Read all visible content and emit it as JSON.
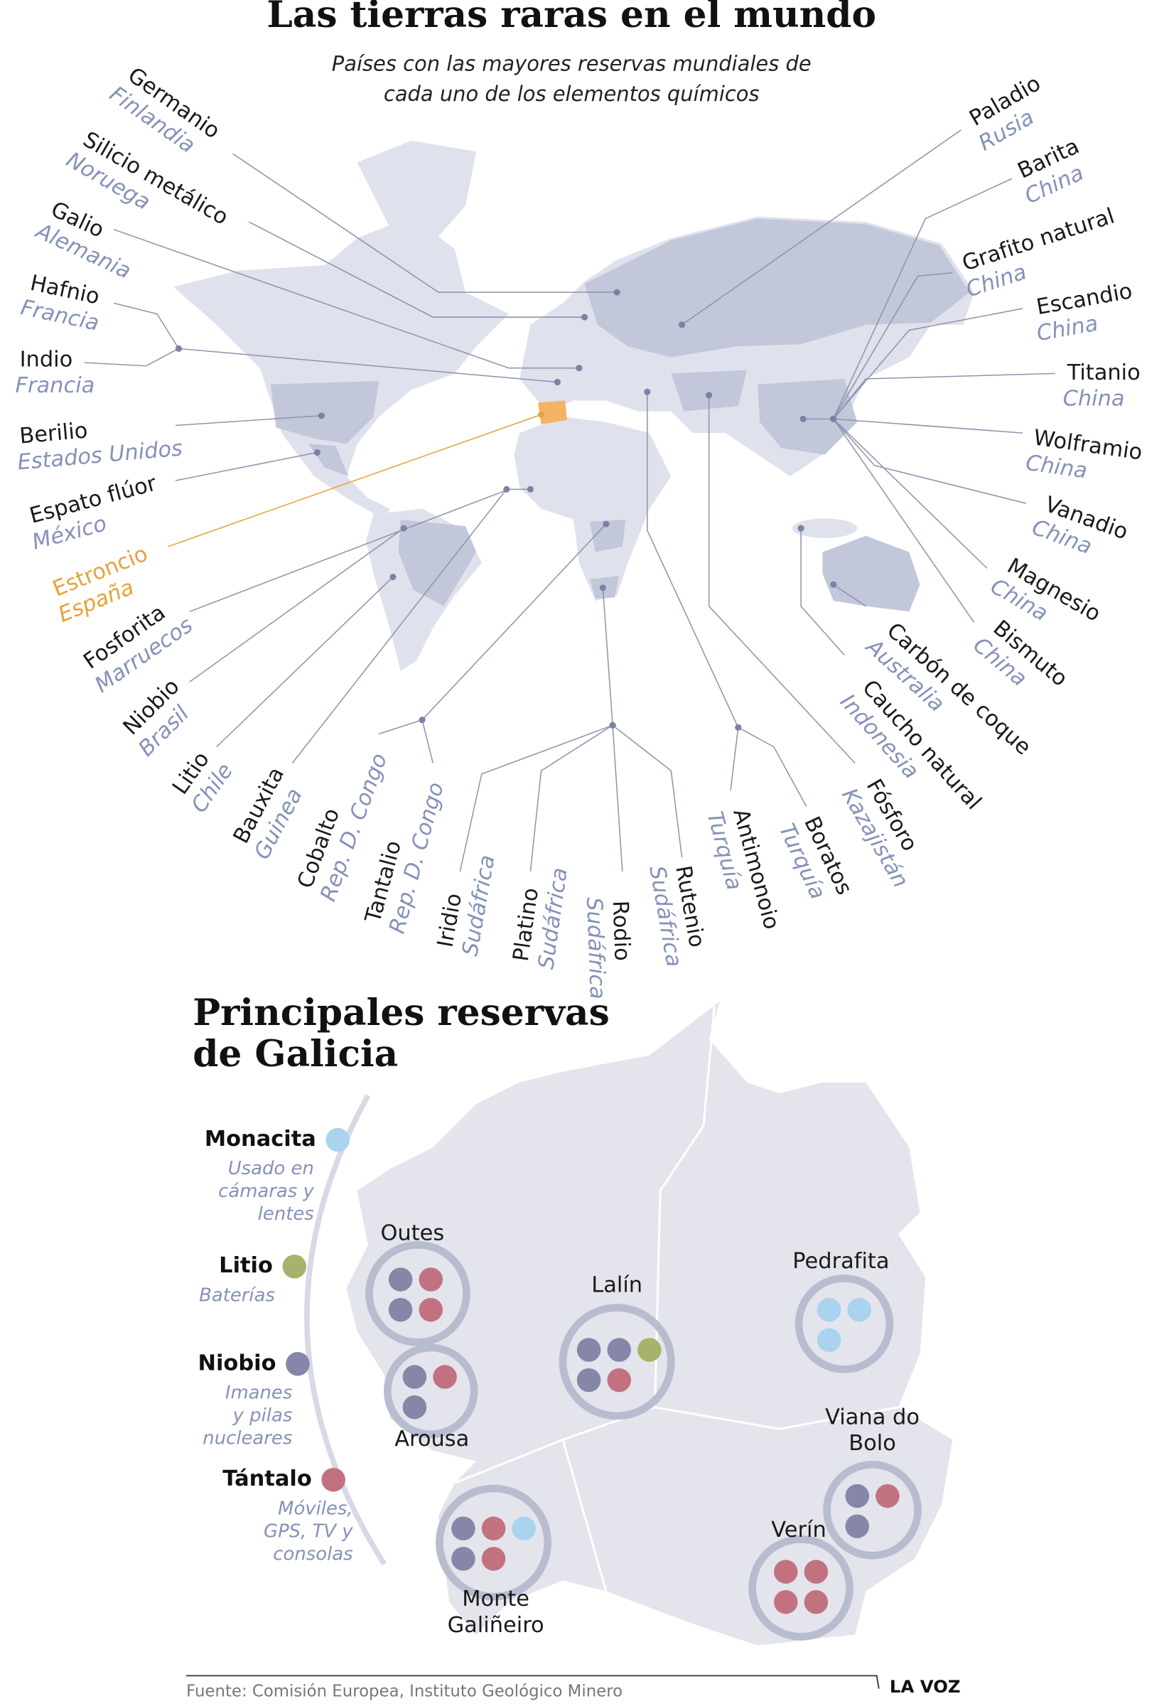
{
  "header": {
    "title": "Las tierras raras en el mundo",
    "subtitle": [
      "Países con las mayores reservas mundiales de",
      "cada uno de los elementos químicos"
    ]
  },
  "world": {
    "elements": [
      {
        "name": "Germanio",
        "country": "Finlandia"
      },
      {
        "name": "Silicio metálico",
        "country": "Noruega"
      },
      {
        "name": "Galio",
        "country": "Alemania"
      },
      {
        "name": "Hafnio",
        "country": "Francia"
      },
      {
        "name": "Indio",
        "country": "Francia"
      },
      {
        "name": "Berilio",
        "country": "Estados Unidos"
      },
      {
        "name": "Espato flúor",
        "country": "México"
      },
      {
        "name": "Estroncio",
        "country": "España",
        "highlight": true
      },
      {
        "name": "Fosforita",
        "country": "Marruecos"
      },
      {
        "name": "Niobio",
        "country": "Brasil"
      },
      {
        "name": "Litio",
        "country": "Chile"
      },
      {
        "name": "Bauxita",
        "country": "Guinea"
      },
      {
        "name": "Cobalto",
        "country": "Rep. D. Congo"
      },
      {
        "name": "Tantalio",
        "country": "Rep. D. Congo"
      },
      {
        "name": "Iridio",
        "country": "Sudáfrica"
      },
      {
        "name": "Platino",
        "country": "Sudáfrica"
      },
      {
        "name": "Rodio",
        "country": "Sudáfrica"
      },
      {
        "name": "Rutenio",
        "country": "Sudáfrica"
      },
      {
        "name": "Antimonoio",
        "country": "Turquía"
      },
      {
        "name": "Boratos",
        "country": "Turquía"
      },
      {
        "name": "Fósforo",
        "country": "Kazajistán"
      },
      {
        "name": "Caucho natural",
        "country": "Indonesia"
      },
      {
        "name": "Carbón de coque",
        "country": "Australia"
      },
      {
        "name": "Bismuto",
        "country": "China"
      },
      {
        "name": "Magnesio",
        "country": "China"
      },
      {
        "name": "Vanadio",
        "country": "China"
      },
      {
        "name": "Wolframio",
        "country": "China"
      },
      {
        "name": "Titanio",
        "country": "China"
      },
      {
        "name": "Escandio",
        "country": "China"
      },
      {
        "name": "Grafito natural",
        "country": "China"
      },
      {
        "name": "Barita",
        "country": "China"
      },
      {
        "name": "Paladio",
        "country": "Rusia"
      }
    ]
  },
  "galicia": {
    "title": [
      "Principales reservas",
      "de Galicia"
    ],
    "legend": [
      {
        "name": "Monacita",
        "color": "#a9d3ee",
        "description": [
          "Usado en",
          "cámaras y",
          "lentes"
        ]
      },
      {
        "name": "Litio",
        "color": "#a6b46b",
        "description": [
          "Baterías"
        ]
      },
      {
        "name": "Niobio",
        "color": "#8586a8",
        "description": [
          "Imanes",
          "y pilas",
          "nucleares"
        ]
      },
      {
        "name": "Tántalo",
        "color": "#c2727f",
        "description": [
          "Móviles,",
          "GPS, TV y",
          "consolas"
        ]
      }
    ],
    "sites": [
      {
        "name": [
          "Outes"
        ],
        "dots": [
          2,
          3,
          2,
          3
        ]
      },
      {
        "name": [
          "Arousa"
        ],
        "dots": [
          2,
          3,
          2
        ]
      },
      {
        "name": [
          "Lalín"
        ],
        "dots": [
          2,
          2,
          1,
          2,
          3
        ]
      },
      {
        "name": [
          "Pedrafita"
        ],
        "dots": [
          0,
          0,
          0
        ]
      },
      {
        "name": [
          "Viana do",
          "Bolo"
        ],
        "dots": [
          2,
          3,
          2
        ]
      },
      {
        "name": [
          "Verín"
        ],
        "dots": [
          3,
          3,
          3,
          3
        ]
      },
      {
        "name": [
          "Monte",
          "Galiñeiro"
        ],
        "dots": [
          2,
          3,
          0,
          2,
          3
        ]
      }
    ]
  },
  "footer": {
    "source": "Fuente: Comisión Europea, Instituto Geológico Minero",
    "brand": "LA VOZ"
  }
}
